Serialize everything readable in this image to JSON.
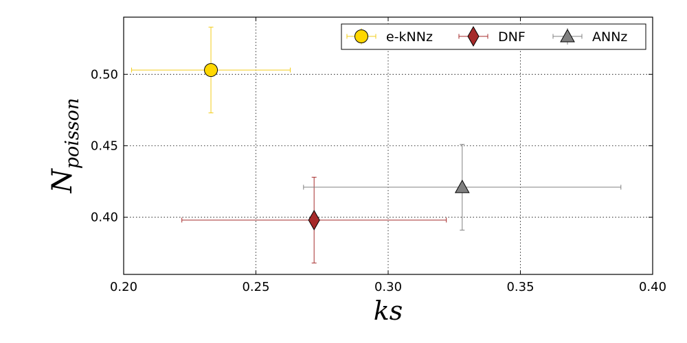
{
  "chart_data": {
    "type": "scatter",
    "title": "",
    "xlabel": "ks",
    "ylabel_base": "N",
    "ylabel_sub": "poisson",
    "xlim": [
      0.2,
      0.4
    ],
    "ylim": [
      0.36,
      0.54
    ],
    "grid": true,
    "legend_position": "top-right",
    "x_ticks": [
      0.2,
      0.25,
      0.3,
      0.35,
      0.4
    ],
    "x_tick_labels": [
      "0.20",
      "0.25",
      "0.30",
      "0.35",
      "0.40"
    ],
    "y_ticks": [
      0.4,
      0.45,
      0.5
    ],
    "y_tick_labels": [
      "0.40",
      "0.45",
      "0.50"
    ],
    "series": [
      {
        "name": "e-kNNz",
        "marker": "circle",
        "color": "#FFD700",
        "edge": "#000000",
        "line_color": "#F2CC19",
        "x": 0.233,
        "y": 0.503,
        "xerr": 0.03,
        "yerr": 0.03
      },
      {
        "name": "DNF",
        "marker": "diamond",
        "color": "#A52A2A",
        "edge": "#000000",
        "line_color": "#A52A2A",
        "x": 0.272,
        "y": 0.398,
        "xerr": 0.05,
        "yerr": 0.03
      },
      {
        "name": "ANNz",
        "marker": "triangle",
        "color": "#808080",
        "edge": "#000000",
        "line_color": "#808080",
        "x": 0.328,
        "y": 0.421,
        "xerr": 0.06,
        "yerr": 0.03
      }
    ]
  }
}
